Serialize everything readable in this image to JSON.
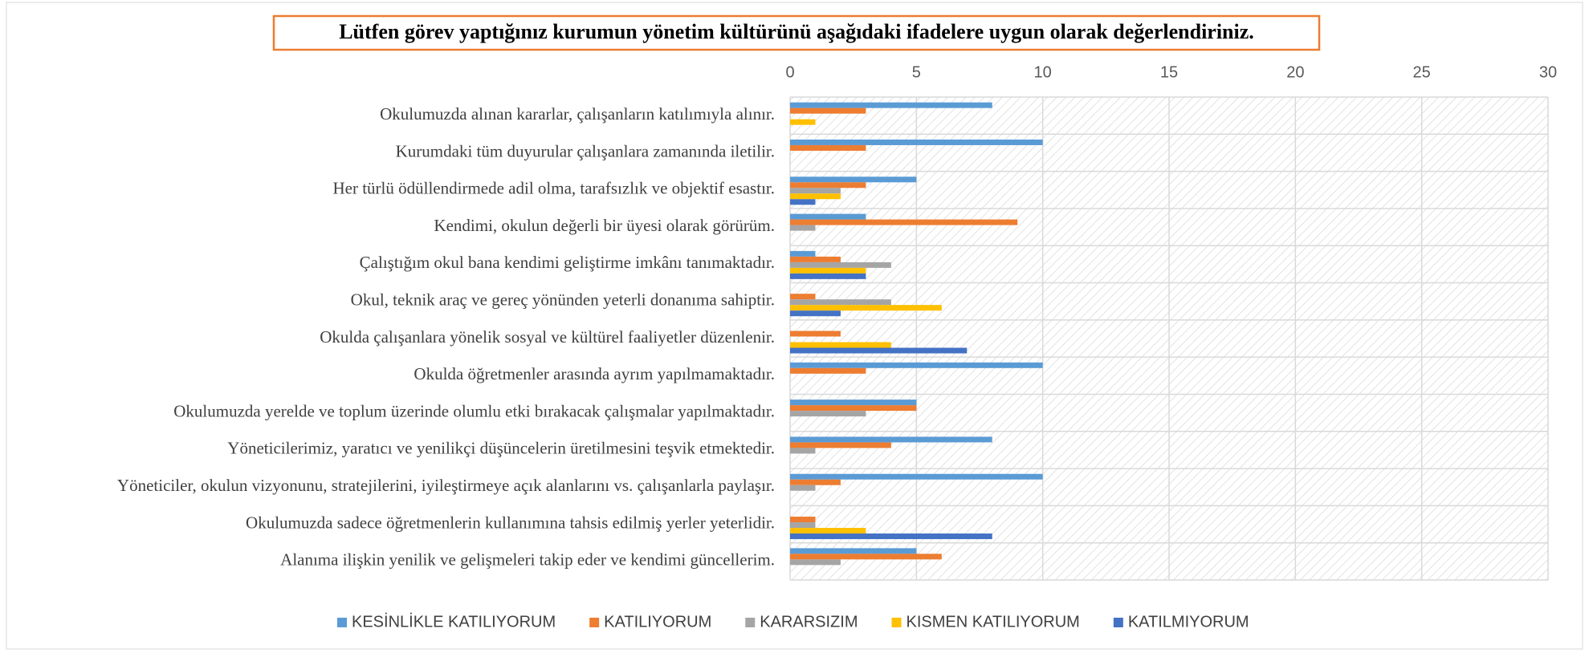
{
  "chart_data": {
    "type": "barh",
    "title": "Lütfen görev yaptığınız kurumun yönetim kültürünü aşağıdaki ifadelere uygun olarak değerlendiriniz.",
    "categories": [
      "Okulumuzda alınan kararlar, çalışanların katılımıyla alınır.",
      "Kurumdaki tüm duyurular çalışanlara zamanında iletilir.",
      "Her türlü ödüllendirmede adil olma, tarafsızlık ve objektif esastır.",
      "Kendimi, okulun değerli bir üyesi olarak görürüm.",
      "Çalıştığım okul bana kendimi geliştirme imkânı tanımaktadır.",
      "Okul, teknik araç ve gereç yönünden yeterli donanıma sahiptir.",
      "Okulda çalışanlara yönelik sosyal ve kültürel faaliyetler düzenlenir.",
      "Okulda öğretmenler arasında ayrım yapılmamaktadır.",
      "Okulumuzda yerelde ve toplum üzerinde olumlu etki bırakacak çalışmalar yapılmaktadır.",
      "Yöneticilerimiz, yaratıcı ve yenilikçi düşüncelerin üretilmesini teşvik etmektedir.",
      "Yöneticiler, okulun vizyonunu, stratejilerini, iyileştirmeye açık alanlarını vs. çalışanlarla paylaşır.",
      "Okulumuzda sadece öğretmenlerin kullanımına tahsis edilmiş yerler yeterlidir.",
      "Alanıma ilişkin yenilik ve gelişmeleri takip eder ve kendimi güncellerim."
    ],
    "series": [
      {
        "name": "KESİNLİKLE KATILIYORUM",
        "color": "#5b9bd5",
        "values": [
          8,
          10,
          5,
          3,
          1,
          0,
          0,
          10,
          5,
          8,
          10,
          0,
          5
        ]
      },
      {
        "name": "KATILIYORUM",
        "color": "#ed7d31",
        "values": [
          3,
          3,
          3,
          9,
          2,
          1,
          2,
          3,
          5,
          4,
          2,
          1,
          6
        ]
      },
      {
        "name": "KARARSIZIM",
        "color": "#a5a5a5",
        "values": [
          0,
          0,
          2,
          1,
          4,
          4,
          0,
          0,
          3,
          1,
          1,
          1,
          2
        ]
      },
      {
        "name": "KISMEN KATILIYORUM",
        "color": "#ffc000",
        "values": [
          1,
          0,
          2,
          0,
          3,
          6,
          4,
          0,
          0,
          0,
          0,
          3,
          0
        ]
      },
      {
        "name": "KATILMIYORUM",
        "color": "#4472c4",
        "values": [
          0,
          0,
          1,
          0,
          3,
          2,
          7,
          0,
          0,
          0,
          0,
          8,
          0
        ]
      }
    ],
    "xlim": [
      0,
      30
    ],
    "xticks": [
      0,
      5,
      10,
      15,
      20,
      25,
      30
    ],
    "grid": true,
    "legend": "bottom"
  }
}
